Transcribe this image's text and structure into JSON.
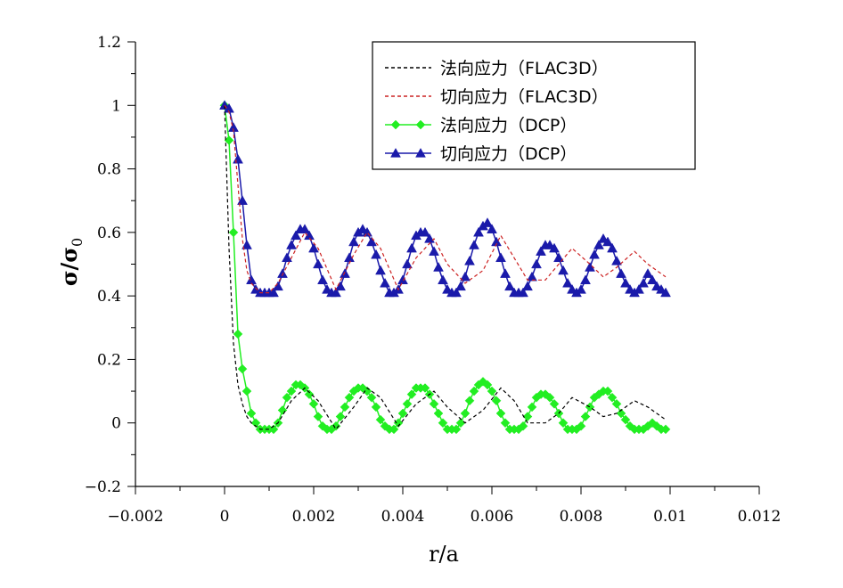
{
  "chart_data": {
    "type": "line",
    "xlabel": "r/a",
    "ylabel": "σ/σ",
    "ylabel_subscript": "0",
    "xlim": [
      -0.002,
      0.012
    ],
    "ylim": [
      -0.2,
      1.2
    ],
    "xticks": [
      -0.002,
      0,
      0.002,
      0.004,
      0.006,
      0.008,
      0.01,
      0.012
    ],
    "xtick_labels": [
      "−0.002",
      "0",
      "0.002",
      "0.004",
      "0.006",
      "0.008",
      "0.01",
      "0.012"
    ],
    "yticks": [
      -0.2,
      0,
      0.2,
      0.4,
      0.6,
      0.8,
      1,
      1.2
    ],
    "ytick_labels": [
      "−0.2",
      "0",
      "0.2",
      "0.4",
      "0.6",
      "0.8",
      "1",
      "1.2"
    ],
    "grid": false,
    "legend_position": "top-right",
    "series": [
      {
        "name": "法向应力（FLAC3D）",
        "color": "#000000",
        "style": "dashed",
        "marker": "none",
        "x": [
          0,
          0.0001,
          0.0002,
          0.0003,
          0.0004,
          0.0005,
          0.0006,
          0.0008,
          0.001,
          0.0012,
          0.0015,
          0.0018,
          0.0021,
          0.0025,
          0.0029,
          0.0032,
          0.0035,
          0.0039,
          0.0043,
          0.0047,
          0.005,
          0.0054,
          0.0058,
          0.0062,
          0.0065,
          0.0068,
          0.0072,
          0.0075,
          0.0078,
          0.0082,
          0.0085,
          0.0088,
          0.0092,
          0.0095,
          0.0099
        ],
        "y": [
          1.0,
          0.55,
          0.25,
          0.12,
          0.06,
          0.02,
          0.0,
          -0.02,
          -0.02,
          0.0,
          0.07,
          0.11,
          0.07,
          -0.02,
          0.05,
          0.11,
          0.08,
          -0.01,
          0.06,
          0.1,
          0.05,
          0.0,
          0.04,
          0.11,
          0.07,
          0.0,
          0.0,
          0.03,
          0.08,
          0.05,
          0.02,
          0.03,
          0.07,
          0.05,
          0.01
        ]
      },
      {
        "name": "切向应力（FLAC3D）",
        "color": "#cc2222",
        "style": "dashed",
        "marker": "none",
        "x": [
          0,
          0.0001,
          0.0002,
          0.0003,
          0.0004,
          0.0005,
          0.0006,
          0.0008,
          0.001,
          0.0012,
          0.0015,
          0.0018,
          0.0021,
          0.0025,
          0.0029,
          0.0032,
          0.0035,
          0.0039,
          0.0043,
          0.0047,
          0.005,
          0.0054,
          0.0058,
          0.0062,
          0.0065,
          0.0068,
          0.0072,
          0.0075,
          0.0078,
          0.0082,
          0.0085,
          0.0088,
          0.0092,
          0.0095,
          0.0099
        ],
        "y": [
          1.0,
          0.98,
          0.92,
          0.75,
          0.58,
          0.48,
          0.44,
          0.41,
          0.41,
          0.44,
          0.52,
          0.6,
          0.55,
          0.42,
          0.53,
          0.6,
          0.55,
          0.42,
          0.52,
          0.58,
          0.5,
          0.44,
          0.48,
          0.59,
          0.52,
          0.45,
          0.45,
          0.5,
          0.55,
          0.5,
          0.46,
          0.49,
          0.54,
          0.5,
          0.46
        ]
      },
      {
        "name": "法向应力（DCP）",
        "color": "#22ee22",
        "style": "solid",
        "marker": "diamond",
        "x": [
          0,
          0.0001,
          0.0002,
          0.0003,
          0.0004,
          0.0005,
          0.0006,
          0.0007,
          0.0008,
          0.0009,
          0.001,
          0.0011,
          0.0012,
          0.0013,
          0.0014,
          0.0015,
          0.0016,
          0.0017,
          0.0018,
          0.0019,
          0.002,
          0.0021,
          0.0022,
          0.0023,
          0.0024,
          0.0025,
          0.0026,
          0.0027,
          0.0028,
          0.0029,
          0.003,
          0.0031,
          0.0032,
          0.0033,
          0.0034,
          0.0035,
          0.0036,
          0.0037,
          0.0038,
          0.0039,
          0.004,
          0.0041,
          0.0042,
          0.0043,
          0.0044,
          0.0045,
          0.0046,
          0.0047,
          0.0048,
          0.0049,
          0.005,
          0.0051,
          0.0052,
          0.0053,
          0.0054,
          0.0055,
          0.0056,
          0.0057,
          0.0058,
          0.0059,
          0.006,
          0.0061,
          0.0062,
          0.0063,
          0.0064,
          0.0065,
          0.0066,
          0.0067,
          0.0068,
          0.0069,
          0.007,
          0.0071,
          0.0072,
          0.0073,
          0.0074,
          0.0075,
          0.0076,
          0.0077,
          0.0078,
          0.0079,
          0.008,
          0.0081,
          0.0082,
          0.0083,
          0.0084,
          0.0085,
          0.0086,
          0.0087,
          0.0088,
          0.0089,
          0.009,
          0.0091,
          0.0092,
          0.0093,
          0.0094,
          0.0095,
          0.0096,
          0.0097,
          0.0098,
          0.0099
        ],
        "y": [
          1.0,
          0.89,
          0.6,
          0.28,
          0.17,
          0.1,
          0.03,
          0.0,
          -0.02,
          -0.02,
          -0.02,
          -0.02,
          0.0,
          0.04,
          0.08,
          0.1,
          0.12,
          0.12,
          0.11,
          0.09,
          0.06,
          0.02,
          -0.01,
          -0.02,
          -0.02,
          -0.01,
          0.02,
          0.05,
          0.08,
          0.1,
          0.11,
          0.11,
          0.1,
          0.08,
          0.05,
          0.01,
          -0.01,
          -0.02,
          -0.02,
          0.0,
          0.03,
          0.06,
          0.09,
          0.11,
          0.11,
          0.11,
          0.09,
          0.06,
          0.03,
          0.0,
          -0.02,
          -0.02,
          -0.02,
          0.0,
          0.03,
          0.07,
          0.1,
          0.12,
          0.13,
          0.12,
          0.1,
          0.07,
          0.03,
          0.0,
          -0.02,
          -0.02,
          -0.02,
          -0.01,
          0.02,
          0.05,
          0.08,
          0.09,
          0.09,
          0.08,
          0.06,
          0.03,
          0.0,
          -0.02,
          -0.02,
          -0.02,
          -0.01,
          0.02,
          0.05,
          0.08,
          0.09,
          0.1,
          0.1,
          0.08,
          0.06,
          0.03,
          0.01,
          -0.01,
          -0.02,
          -0.02,
          -0.02,
          -0.01,
          0.0,
          -0.01,
          -0.02,
          -0.02
        ]
      },
      {
        "name": "切向应力（DCP）",
        "color": "#1a1aaa",
        "style": "solid",
        "marker": "triangle",
        "x": [
          0,
          0.0001,
          0.0002,
          0.0003,
          0.0004,
          0.0005,
          0.0006,
          0.0007,
          0.0008,
          0.0009,
          0.001,
          0.0011,
          0.0012,
          0.0013,
          0.0014,
          0.0015,
          0.0016,
          0.0017,
          0.0018,
          0.0019,
          0.002,
          0.0021,
          0.0022,
          0.0023,
          0.0024,
          0.0025,
          0.0026,
          0.0027,
          0.0028,
          0.0029,
          0.003,
          0.0031,
          0.0032,
          0.0033,
          0.0034,
          0.0035,
          0.0036,
          0.0037,
          0.0038,
          0.0039,
          0.004,
          0.0041,
          0.0042,
          0.0043,
          0.0044,
          0.0045,
          0.0046,
          0.0047,
          0.0048,
          0.0049,
          0.005,
          0.0051,
          0.0052,
          0.0053,
          0.0054,
          0.0055,
          0.0056,
          0.0057,
          0.0058,
          0.0059,
          0.006,
          0.0061,
          0.0062,
          0.0063,
          0.0064,
          0.0065,
          0.0066,
          0.0067,
          0.0068,
          0.0069,
          0.007,
          0.0071,
          0.0072,
          0.0073,
          0.0074,
          0.0075,
          0.0076,
          0.0077,
          0.0078,
          0.0079,
          0.008,
          0.0081,
          0.0082,
          0.0083,
          0.0084,
          0.0085,
          0.0086,
          0.0087,
          0.0088,
          0.0089,
          0.009,
          0.0091,
          0.0092,
          0.0093,
          0.0094,
          0.0095,
          0.0096,
          0.0097,
          0.0098,
          0.0099
        ],
        "y": [
          1.0,
          0.99,
          0.93,
          0.83,
          0.7,
          0.56,
          0.45,
          0.42,
          0.41,
          0.41,
          0.41,
          0.41,
          0.43,
          0.47,
          0.52,
          0.56,
          0.59,
          0.61,
          0.61,
          0.59,
          0.55,
          0.5,
          0.45,
          0.42,
          0.41,
          0.41,
          0.43,
          0.47,
          0.52,
          0.57,
          0.6,
          0.61,
          0.6,
          0.57,
          0.53,
          0.48,
          0.44,
          0.41,
          0.41,
          0.42,
          0.45,
          0.5,
          0.55,
          0.59,
          0.6,
          0.6,
          0.58,
          0.54,
          0.49,
          0.45,
          0.42,
          0.41,
          0.41,
          0.43,
          0.46,
          0.51,
          0.56,
          0.6,
          0.62,
          0.63,
          0.61,
          0.57,
          0.52,
          0.47,
          0.43,
          0.41,
          0.41,
          0.41,
          0.43,
          0.46,
          0.5,
          0.54,
          0.56,
          0.56,
          0.55,
          0.52,
          0.48,
          0.44,
          0.42,
          0.41,
          0.42,
          0.45,
          0.49,
          0.53,
          0.56,
          0.58,
          0.57,
          0.55,
          0.51,
          0.47,
          0.44,
          0.42,
          0.41,
          0.42,
          0.44,
          0.47,
          0.45,
          0.43,
          0.42,
          0.41
        ]
      }
    ]
  }
}
